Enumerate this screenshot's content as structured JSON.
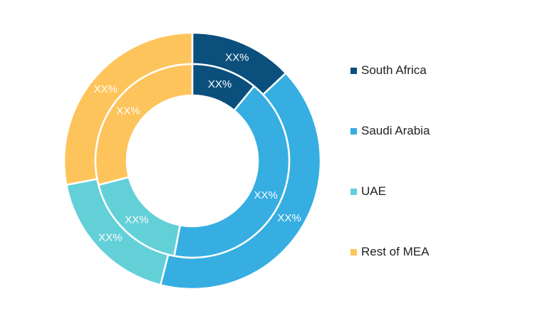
{
  "chart_data": {
    "type": "donut",
    "title": "",
    "categories": [
      "South Africa",
      "Saudi Arabia",
      "UAE",
      "Rest of MEA"
    ],
    "colors": [
      "#0b4f7c",
      "#36aee2",
      "#63d0d8",
      "#fec45c"
    ],
    "series": [
      {
        "ring": "outer",
        "values": [
          13,
          41,
          18,
          28
        ],
        "labels": [
          "XX%",
          "XX%",
          "XX%",
          "XX%"
        ]
      },
      {
        "ring": "inner",
        "values": [
          11,
          42,
          18,
          29
        ],
        "labels": [
          "XX%",
          "XX%",
          "XX%",
          "XX%"
        ]
      }
    ],
    "legend": {
      "position": "right",
      "items": [
        "South Africa",
        "Saudi Arabia",
        "UAE",
        "Rest of MEA"
      ]
    }
  }
}
